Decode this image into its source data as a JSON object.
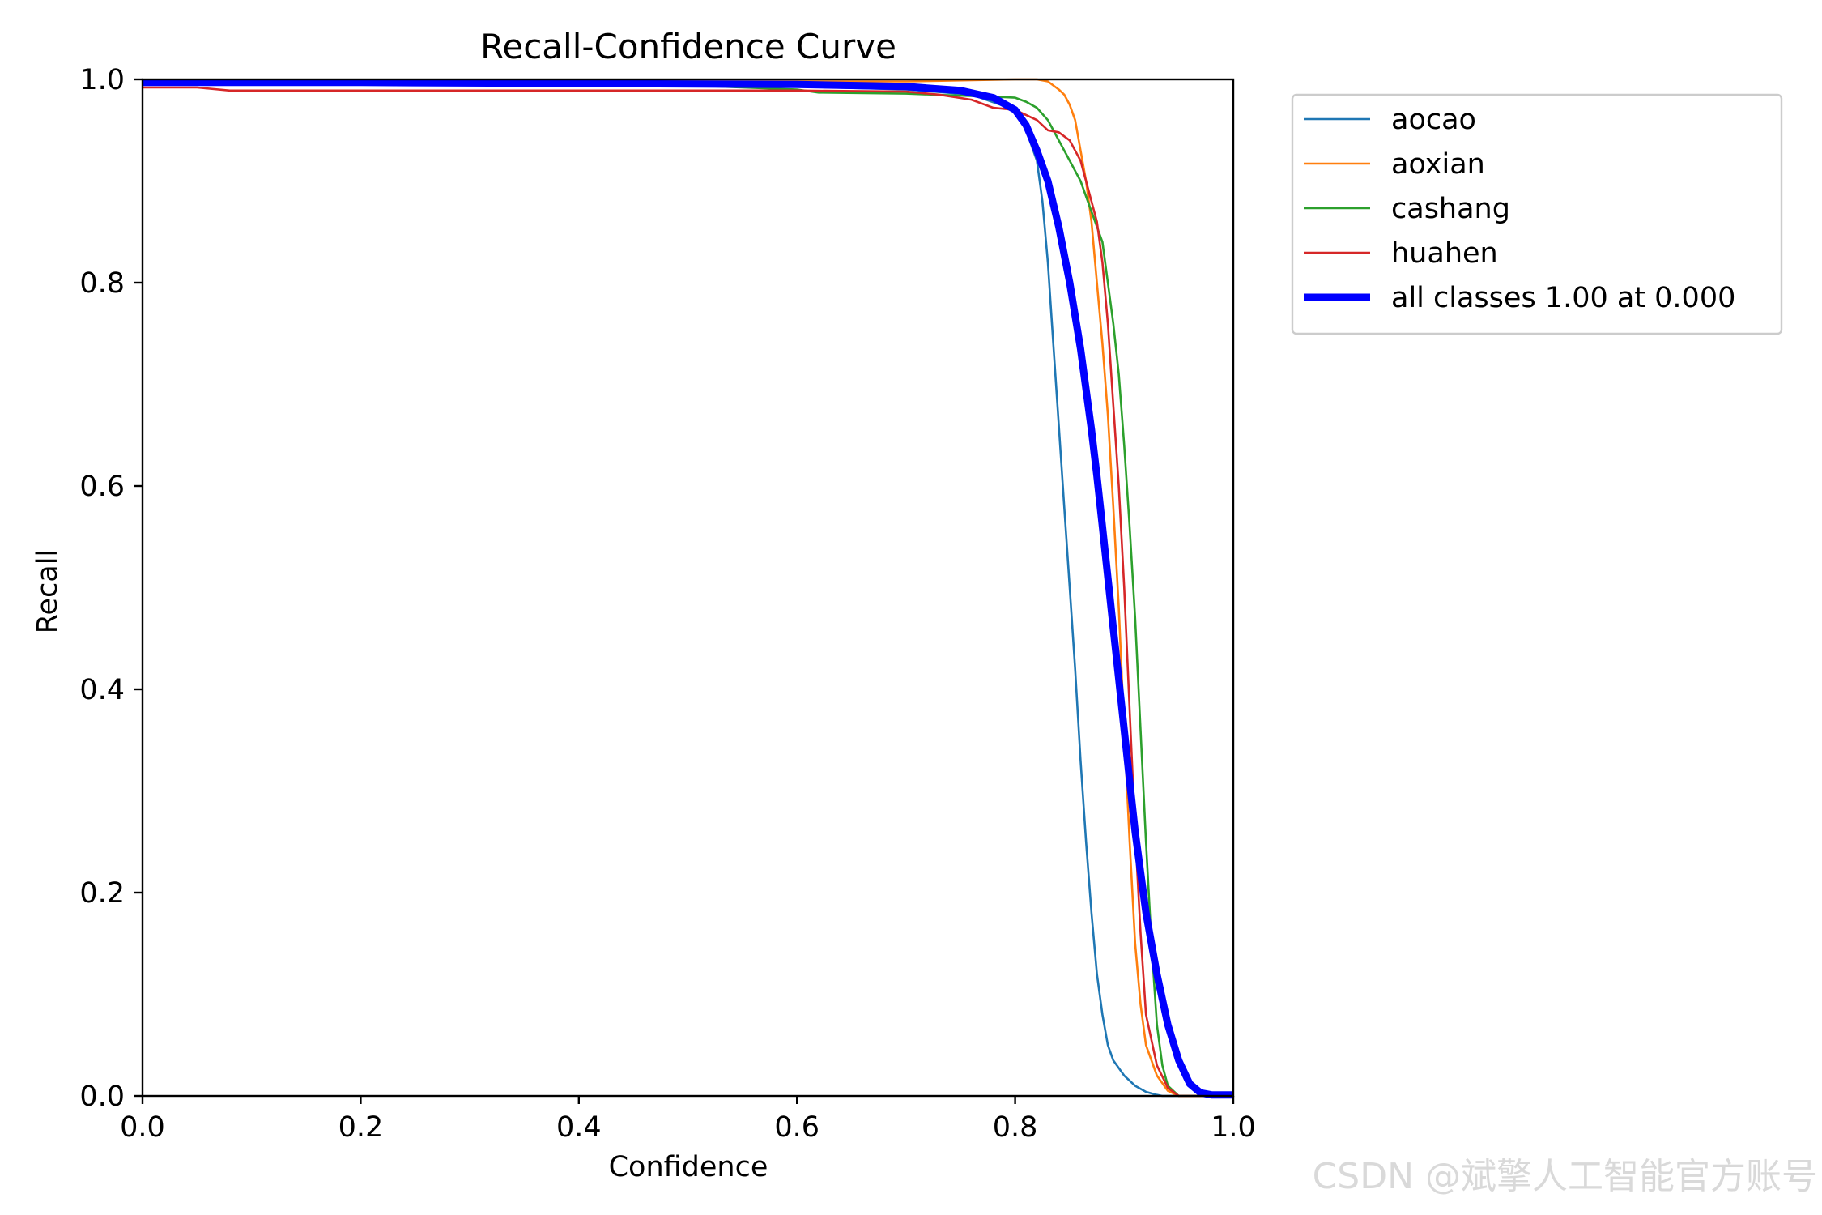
{
  "chart_data": {
    "type": "line",
    "title": "Recall-Confidence Curve",
    "xlabel": "Confidence",
    "ylabel": "Recall",
    "xlim": [
      0,
      1
    ],
    "ylim": [
      0,
      1
    ],
    "xticks": [
      "0.0",
      "0.2",
      "0.4",
      "0.6",
      "0.8",
      "1.0"
    ],
    "yticks": [
      "0.0",
      "0.2",
      "0.4",
      "0.6",
      "0.8",
      "1.0"
    ],
    "legend_position": "outside-top-right",
    "grid": false,
    "series": [
      {
        "name": "aocao",
        "color": "#1f77b4",
        "x": [
          0.0,
          0.1,
          0.3,
          0.5,
          0.6,
          0.7,
          0.76,
          0.8,
          0.81,
          0.82,
          0.825,
          0.83,
          0.835,
          0.84,
          0.845,
          0.85,
          0.855,
          0.86,
          0.865,
          0.87,
          0.875,
          0.88,
          0.885,
          0.89,
          0.9,
          0.91,
          0.92,
          0.93,
          0.935,
          1.0
        ],
        "y": [
          0.995,
          0.995,
          0.995,
          0.994,
          0.993,
          0.99,
          0.985,
          0.97,
          0.95,
          0.92,
          0.88,
          0.82,
          0.74,
          0.66,
          0.58,
          0.5,
          0.42,
          0.33,
          0.25,
          0.18,
          0.12,
          0.08,
          0.05,
          0.035,
          0.02,
          0.01,
          0.004,
          0.001,
          0.0,
          0.0
        ]
      },
      {
        "name": "aoxian",
        "color": "#ff7f0e",
        "x": [
          0.0,
          0.5,
          0.7,
          0.8,
          0.81,
          0.82,
          0.83,
          0.84,
          0.845,
          0.85,
          0.855,
          0.86,
          0.865,
          0.87,
          0.875,
          0.88,
          0.885,
          0.89,
          0.895,
          0.9,
          0.905,
          0.91,
          0.915,
          0.92,
          0.93,
          0.94,
          0.95,
          1.0
        ],
        "y": [
          0.998,
          0.998,
          0.998,
          1.0,
          1.0,
          1.0,
          0.998,
          0.99,
          0.985,
          0.975,
          0.96,
          0.93,
          0.9,
          0.86,
          0.8,
          0.74,
          0.67,
          0.58,
          0.48,
          0.36,
          0.25,
          0.15,
          0.09,
          0.05,
          0.02,
          0.005,
          0.0,
          0.0
        ]
      },
      {
        "name": "cashang",
        "color": "#2ca02c",
        "x": [
          0.0,
          0.3,
          0.5,
          0.6,
          0.62,
          0.7,
          0.75,
          0.78,
          0.8,
          0.81,
          0.82,
          0.83,
          0.84,
          0.85,
          0.86,
          0.87,
          0.88,
          0.885,
          0.89,
          0.895,
          0.9,
          0.905,
          0.91,
          0.915,
          0.92,
          0.925,
          0.93,
          0.935,
          0.94,
          0.95,
          1.0
        ],
        "y": [
          0.995,
          0.995,
          0.994,
          0.99,
          0.987,
          0.986,
          0.984,
          0.983,
          0.982,
          0.978,
          0.972,
          0.96,
          0.94,
          0.92,
          0.9,
          0.87,
          0.84,
          0.8,
          0.76,
          0.71,
          0.64,
          0.56,
          0.47,
          0.36,
          0.25,
          0.15,
          0.07,
          0.03,
          0.01,
          0.0,
          0.0
        ]
      },
      {
        "name": "huahen",
        "color": "#d62728",
        "x": [
          0.0,
          0.05,
          0.08,
          0.3,
          0.5,
          0.6,
          0.7,
          0.73,
          0.76,
          0.78,
          0.8,
          0.81,
          0.82,
          0.83,
          0.84,
          0.85,
          0.86,
          0.87,
          0.875,
          0.88,
          0.885,
          0.89,
          0.895,
          0.9,
          0.905,
          0.91,
          0.915,
          0.92,
          0.93,
          0.94,
          0.95,
          1.0
        ],
        "y": [
          0.992,
          0.992,
          0.989,
          0.989,
          0.989,
          0.989,
          0.988,
          0.985,
          0.98,
          0.972,
          0.97,
          0.965,
          0.96,
          0.95,
          0.948,
          0.94,
          0.92,
          0.88,
          0.86,
          0.82,
          0.76,
          0.68,
          0.6,
          0.5,
          0.38,
          0.26,
          0.16,
          0.08,
          0.03,
          0.008,
          0.0,
          0.0
        ]
      },
      {
        "name": "all classes 1.00 at 0.000",
        "color": "#0000ff",
        "bold": true,
        "x": [
          0.0,
          0.2,
          0.4,
          0.6,
          0.7,
          0.75,
          0.78,
          0.8,
          0.81,
          0.82,
          0.83,
          0.84,
          0.85,
          0.86,
          0.87,
          0.875,
          0.88,
          0.885,
          0.89,
          0.895,
          0.9,
          0.905,
          0.91,
          0.915,
          0.92,
          0.93,
          0.94,
          0.95,
          0.96,
          0.97,
          0.98,
          1.0
        ],
        "y": [
          0.997,
          0.997,
          0.996,
          0.995,
          0.993,
          0.989,
          0.982,
          0.97,
          0.955,
          0.93,
          0.9,
          0.855,
          0.8,
          0.735,
          0.655,
          0.61,
          0.56,
          0.51,
          0.46,
          0.41,
          0.36,
          0.31,
          0.26,
          0.22,
          0.18,
          0.12,
          0.07,
          0.035,
          0.012,
          0.003,
          0.001,
          0.001
        ]
      }
    ]
  },
  "watermark": "CSDN @斌擎人工智能官方账号"
}
